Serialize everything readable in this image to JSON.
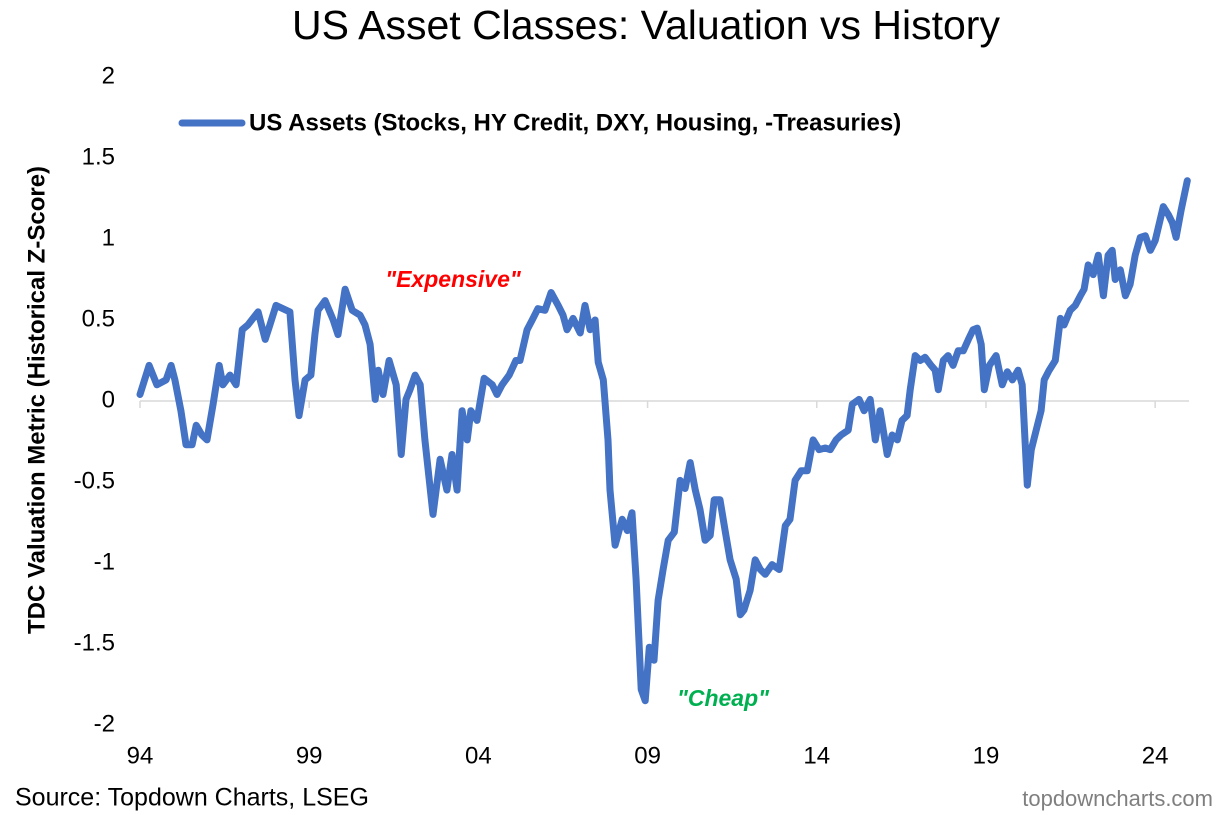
{
  "chart_data": {
    "type": "line",
    "title": "US Asset Classes: Valuation vs History",
    "ylabel": "TDC Valuation Metric (Historical Z-Score)",
    "source": "Source: Topdown Charts, LSEG",
    "watermark": "topdowncharts.com",
    "annotations": [
      {
        "text": "\"Expensive\"",
        "color": "#ff0000"
      },
      {
        "text": "\"Cheap\"",
        "color": "#00b050"
      }
    ],
    "legend": "top",
    "xlim": [
      1994,
      2025
    ],
    "xticks": [
      {
        "value": 1994,
        "label": "94"
      },
      {
        "value": 1999,
        "label": "99"
      },
      {
        "value": 2004,
        "label": "04"
      },
      {
        "value": 2009,
        "label": "09"
      },
      {
        "value": 2014,
        "label": "14"
      },
      {
        "value": 2019,
        "label": "19"
      },
      {
        "value": 2024,
        "label": "24"
      }
    ],
    "ylim": [
      -2,
      2
    ],
    "yticks": [
      2,
      1.5,
      1,
      0.5,
      0,
      -0.5,
      -1,
      -1.5,
      -2
    ],
    "x": [
      1994.0,
      1994.27,
      1994.5,
      1994.77,
      1994.92,
      1995.03,
      1995.21,
      1995.36,
      1995.54,
      1995.66,
      1995.83,
      1995.98,
      1996.16,
      1996.34,
      1996.45,
      1996.66,
      1996.84,
      1997.02,
      1997.19,
      1997.49,
      1997.7,
      1997.84,
      1998.02,
      1998.43,
      1998.58,
      1998.7,
      1998.88,
      1999.05,
      1999.17,
      1999.26,
      1999.47,
      1999.71,
      1999.85,
      2000.06,
      2000.27,
      2000.5,
      2000.65,
      2000.8,
      2000.95,
      2001.04,
      2001.18,
      2001.36,
      2001.57,
      2001.72,
      2001.86,
      2001.98,
      2002.13,
      2002.28,
      2002.42,
      2002.66,
      2002.87,
      2003.07,
      2003.22,
      2003.37,
      2003.52,
      2003.67,
      2003.78,
      2003.96,
      2004.17,
      2004.41,
      2004.55,
      2004.7,
      2004.91,
      2005.11,
      2005.23,
      2005.44,
      2005.59,
      2005.76,
      2005.97,
      2006.15,
      2006.36,
      2006.5,
      2006.62,
      2006.8,
      2007.01,
      2007.15,
      2007.3,
      2007.45,
      2007.54,
      2007.69,
      2007.83,
      2007.89,
      2008.04,
      2008.25,
      2008.4,
      2008.54,
      2008.66,
      2008.81,
      2008.93,
      2009.05,
      2009.19,
      2009.31,
      2009.46,
      2009.61,
      2009.79,
      2009.96,
      2010.11,
      2010.26,
      2010.41,
      2010.55,
      2010.7,
      2010.85,
      2010.97,
      2011.14,
      2011.29,
      2011.44,
      2011.62,
      2011.74,
      2011.85,
      2012.03,
      2012.18,
      2012.33,
      2012.48,
      2012.68,
      2012.89,
      2013.07,
      2013.21,
      2013.36,
      2013.54,
      2013.72,
      2013.89,
      2014.07,
      2014.25,
      2014.4,
      2014.57,
      2014.72,
      2014.93,
      2015.05,
      2015.25,
      2015.4,
      2015.58,
      2015.73,
      2015.87,
      2016.08,
      2016.23,
      2016.38,
      2016.52,
      2016.67,
      2016.76,
      2016.91,
      2017.06,
      2017.2,
      2017.38,
      2017.5,
      2017.59,
      2017.74,
      2017.88,
      2018.03,
      2018.18,
      2018.33,
      2018.48,
      2018.62,
      2018.74,
      2018.86,
      2018.95,
      2019.1,
      2019.3,
      2019.48,
      2019.63,
      2019.78,
      2019.95,
      2020.07,
      2020.22,
      2020.34,
      2020.52,
      2020.63,
      2020.72,
      2020.87,
      2021.05,
      2021.2,
      2021.31,
      2021.49,
      2021.64,
      2021.79,
      2021.9,
      2022.02,
      2022.17,
      2022.32,
      2022.47,
      2022.61,
      2022.73,
      2022.82,
      2022.97,
      2023.12,
      2023.26,
      2023.41,
      2023.56,
      2023.71,
      2023.86,
      2024.0,
      2024.15,
      2024.24,
      2024.39,
      2024.51,
      2024.62,
      2024.77,
      2024.95
    ],
    "series": [
      {
        "name": "US Assets (Stocks, HY Credit, DXY, Housing, -Treasuries)",
        "color": "#4472c4",
        "values": [
          0.04,
          0.22,
          0.1,
          0.13,
          0.22,
          0.13,
          -0.06,
          -0.27,
          -0.27,
          -0.15,
          -0.21,
          -0.24,
          -0.02,
          0.22,
          0.1,
          0.16,
          0.1,
          0.44,
          0.47,
          0.55,
          0.38,
          0.47,
          0.59,
          0.55,
          0.13,
          -0.09,
          0.13,
          0.16,
          0.41,
          0.56,
          0.62,
          0.5,
          0.41,
          0.69,
          0.56,
          0.53,
          0.47,
          0.35,
          0.01,
          0.19,
          0.04,
          0.25,
          0.1,
          -0.33,
          0.01,
          0.07,
          0.16,
          0.1,
          -0.24,
          -0.7,
          -0.36,
          -0.55,
          -0.33,
          -0.55,
          -0.06,
          -0.24,
          -0.06,
          -0.12,
          0.14,
          0.1,
          0.04,
          0.1,
          0.16,
          0.25,
          0.25,
          0.44,
          0.5,
          0.57,
          0.56,
          0.67,
          0.59,
          0.53,
          0.44,
          0.51,
          0.42,
          0.59,
          0.44,
          0.5,
          0.24,
          0.13,
          -0.24,
          -0.55,
          -0.89,
          -0.73,
          -0.8,
          -0.69,
          -1.1,
          -1.78,
          -1.85,
          -1.52,
          -1.6,
          -1.23,
          -1.04,
          -0.86,
          -0.81,
          -0.49,
          -0.54,
          -0.38,
          -0.55,
          -0.67,
          -0.86,
          -0.83,
          -0.61,
          -0.61,
          -0.8,
          -0.98,
          -1.1,
          -1.32,
          -1.29,
          -1.17,
          -0.98,
          -1.04,
          -1.07,
          -1.01,
          -1.04,
          -0.77,
          -0.73,
          -0.49,
          -0.43,
          -0.43,
          -0.24,
          -0.3,
          -0.29,
          -0.3,
          -0.24,
          -0.21,
          -0.18,
          -0.02,
          0.01,
          -0.06,
          0.01,
          -0.24,
          -0.06,
          -0.33,
          -0.21,
          -0.24,
          -0.12,
          -0.09,
          0.07,
          0.28,
          0.25,
          0.27,
          0.22,
          0.19,
          0.07,
          0.25,
          0.28,
          0.22,
          0.31,
          0.31,
          0.38,
          0.44,
          0.45,
          0.35,
          0.07,
          0.22,
          0.28,
          0.1,
          0.18,
          0.13,
          0.19,
          0.1,
          -0.52,
          -0.3,
          -0.15,
          -0.06,
          0.13,
          0.19,
          0.25,
          0.51,
          0.47,
          0.56,
          0.59,
          0.65,
          0.69,
          0.84,
          0.78,
          0.9,
          0.65,
          0.9,
          0.93,
          0.75,
          0.81,
          0.65,
          0.72,
          0.9,
          1.01,
          1.02,
          0.93,
          0.99,
          1.12,
          1.2,
          1.15,
          1.1,
          1.01,
          1.18,
          1.36
        ]
      }
    ]
  }
}
